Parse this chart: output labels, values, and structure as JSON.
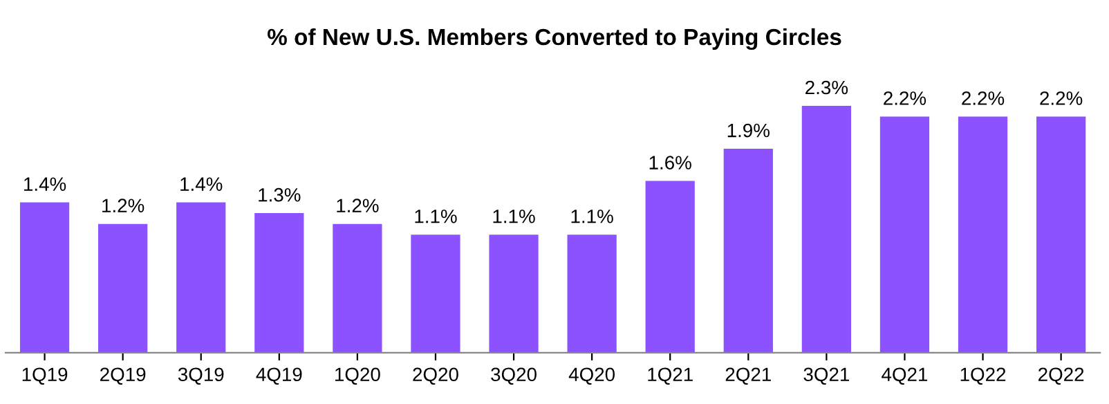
{
  "chart_data": {
    "type": "bar",
    "title": "% of New U.S. Members Converted to Paying Circles",
    "categories": [
      "1Q19",
      "2Q19",
      "3Q19",
      "4Q19",
      "1Q20",
      "2Q20",
      "3Q20",
      "4Q20",
      "1Q21",
      "2Q21",
      "3Q21",
      "4Q21",
      "1Q22",
      "2Q22"
    ],
    "values": [
      1.4,
      1.2,
      1.4,
      1.3,
      1.2,
      1.1,
      1.1,
      1.1,
      1.6,
      1.9,
      2.3,
      2.2,
      2.2,
      2.2
    ],
    "value_labels": [
      "1.4%",
      "1.2%",
      "1.4%",
      "1.3%",
      "1.2%",
      "1.1%",
      "1.1%",
      "1.1%",
      "1.6%",
      "1.9%",
      "2.3%",
      "2.2%",
      "2.2%",
      "2.2%"
    ],
    "color": "#8c52ff",
    "grid": false,
    "legend": false,
    "tick_labels": "x"
  }
}
